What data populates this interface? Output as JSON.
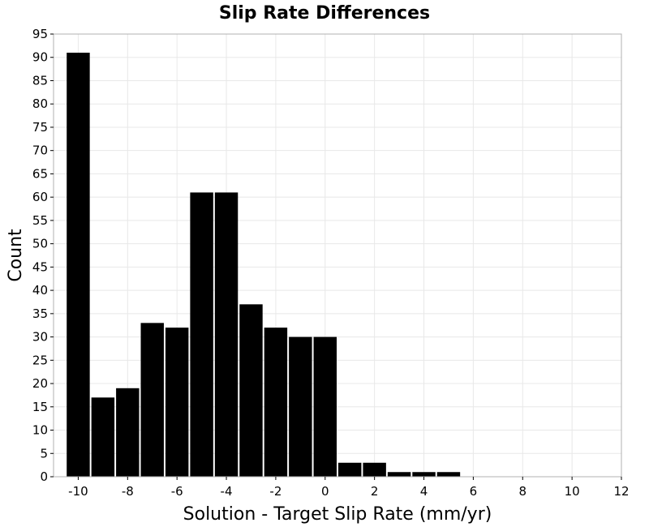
{
  "chart_data": {
    "type": "bar",
    "title": "Slip Rate Differences",
    "xlabel": "Solution - Target Slip Rate (mm/yr)",
    "ylabel": "Count",
    "xlim": [
      -11,
      12
    ],
    "ylim": [
      0,
      95
    ],
    "xticks": [
      -10,
      -8,
      -6,
      -4,
      -2,
      0,
      2,
      4,
      6,
      8,
      10,
      12
    ],
    "yticks": [
      0,
      5,
      10,
      15,
      20,
      25,
      30,
      35,
      40,
      45,
      50,
      55,
      60,
      65,
      70,
      75,
      80,
      85,
      90,
      95
    ],
    "bin_width": 1,
    "bins": [
      {
        "x": -10,
        "value": 91
      },
      {
        "x": -9,
        "value": 17
      },
      {
        "x": -8,
        "value": 19
      },
      {
        "x": -7,
        "value": 33
      },
      {
        "x": -6,
        "value": 32
      },
      {
        "x": -5,
        "value": 61
      },
      {
        "x": -4,
        "value": 61
      },
      {
        "x": -3,
        "value": 37
      },
      {
        "x": -2,
        "value": 32
      },
      {
        "x": -1,
        "value": 30
      },
      {
        "x": 0,
        "value": 30
      },
      {
        "x": 1,
        "value": 3
      },
      {
        "x": 2,
        "value": 3
      },
      {
        "x": 3,
        "value": 1
      },
      {
        "x": 4,
        "value": 1
      },
      {
        "x": 5,
        "value": 1
      }
    ],
    "bar_color": "#000000",
    "grid": true
  }
}
